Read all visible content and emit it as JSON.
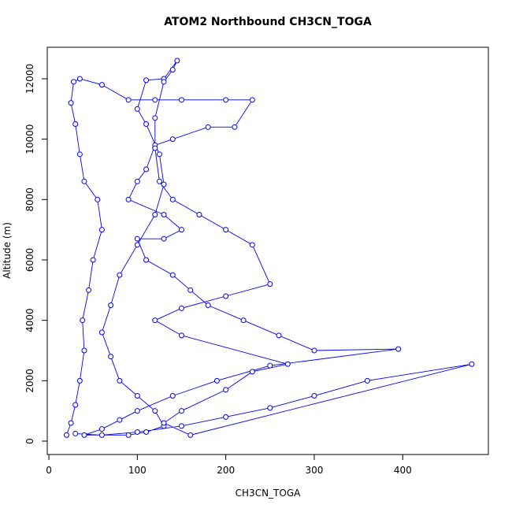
{
  "chart_data": {
    "type": "line",
    "title": "ATOM2 Northbound CH3CN_TOGA",
    "x_label": "CH3CN_TOGA",
    "y_label": "Altitude (m)",
    "x": [
      20,
      25,
      30,
      35,
      40,
      38,
      45,
      50,
      60,
      55,
      40,
      35,
      30,
      25,
      28,
      35,
      60,
      90,
      120,
      150,
      200,
      230,
      210,
      180,
      140,
      120,
      110,
      100,
      90,
      130,
      150,
      130,
      100,
      110,
      140,
      160,
      180,
      220,
      260,
      300,
      395,
      250,
      190,
      140,
      100,
      80,
      60,
      40,
      90,
      110,
      130,
      120,
      100,
      80,
      70,
      60,
      70,
      80,
      100,
      120,
      130,
      125,
      110,
      100,
      110,
      130,
      145,
      140,
      130,
      120,
      120,
      125,
      140,
      170,
      200,
      230,
      250,
      200,
      150,
      120,
      150,
      270,
      230,
      200,
      150,
      130,
      160,
      478,
      360,
      300,
      250,
      200,
      150,
      100,
      60,
      30
    ],
    "series": [
      {
        "name": "CH3CN_TOGA",
        "color": "#0000ff",
        "values": [
          200,
          600,
          1200,
          2000,
          3000,
          4000,
          5000,
          6000,
          7000,
          8000,
          8600,
          9500,
          10500,
          11200,
          11900,
          12000,
          11800,
          11300,
          11300,
          11300,
          11300,
          11300,
          10400,
          10400,
          10000,
          9800,
          9000,
          8600,
          8000,
          7500,
          7000,
          6700,
          6700,
          6000,
          5500,
          5000,
          4500,
          4000,
          3500,
          3000,
          3050,
          2500,
          2000,
          1500,
          1000,
          700,
          400,
          200,
          200,
          300,
          500,
          1000,
          1500,
          2000,
          2800,
          3600,
          4500,
          5500,
          6500,
          7500,
          8500,
          9500,
          10500,
          11000,
          11950,
          12000,
          12600,
          12300,
          11900,
          10700,
          9700,
          8600,
          8000,
          7500,
          7000,
          6500,
          5200,
          4800,
          4400,
          4000,
          3500,
          2550,
          2300,
          1700,
          1000,
          600,
          200,
          2550,
          2000,
          1500,
          1100,
          800,
          500,
          300,
          200,
          250
        ]
      }
    ],
    "xlim": [
      -1.8,
      496.8
    ],
    "ylim": [
      -443,
      13043
    ],
    "xticks": [
      0,
      100,
      200,
      300,
      400
    ],
    "yticks": [
      0,
      2000,
      4000,
      6000,
      8000,
      10000,
      12000
    ]
  }
}
